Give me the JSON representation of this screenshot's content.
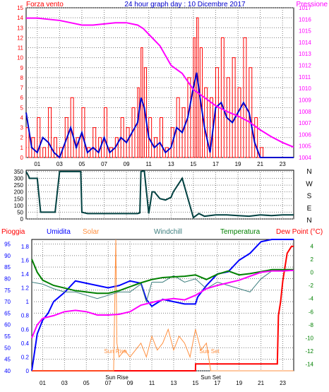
{
  "header": {
    "left_label": "Forza vento",
    "title": "24 hour graph day : 10 Dicembre 2017",
    "right_label": "Pressione"
  },
  "colors": {
    "background": "#ffffff",
    "plot_bg": "#ffffff",
    "grid": "#7f7f7f",
    "wind": "#ff0000",
    "gust_avg": "#0000cc",
    "pressure": "#ff00ff",
    "direction": "#004040",
    "rain": "#ff0000",
    "humidity": "#0000ff",
    "solar": "#ff9040",
    "windchill": "#408080",
    "temperature": "#008000",
    "dewpoint": "#ff00ff"
  },
  "hour_labels": [
    "01",
    "03",
    "05",
    "07",
    "09",
    "11",
    "13",
    "15",
    "17",
    "19",
    "21",
    "23"
  ],
  "chart_data": [
    {
      "type": "line",
      "title": "24 hour graph day : 10 Dicembre 2017",
      "ylabel_left": "Forza vento",
      "ylabel_right": "Pressione",
      "left_ticks": [
        "0",
        "1",
        "2",
        "3",
        "4",
        "5",
        "6",
        "7",
        "8",
        "9",
        "10",
        "11",
        "12",
        "13",
        "14",
        "15"
      ],
      "right_ticks": [
        "1004",
        "1005",
        "1006",
        "1007",
        "1008",
        "1009",
        "1010",
        "1011",
        "1012",
        "1013",
        "1014",
        "1015",
        "1016",
        "1017"
      ],
      "ylim_left": [
        0,
        15
      ],
      "ylim_right": [
        1004,
        1017
      ],
      "xlim": [
        0,
        24
      ],
      "series": [
        {
          "axis": "left",
          "color": "#ff0000",
          "x": [
            0,
            0.5,
            1,
            1.5,
            2,
            2.5,
            3,
            3.5,
            4,
            4.5,
            5,
            5.5,
            6,
            6.5,
            7,
            7.5,
            8,
            8.5,
            9,
            9.5,
            10,
            10.3,
            10.6,
            11,
            11.5,
            12,
            12.5,
            13,
            13.5,
            14,
            14.5,
            15,
            15.3,
            15.6,
            16,
            16.5,
            17,
            17.5,
            18,
            18.5,
            19,
            19.5,
            20,
            20.5,
            21,
            21.5,
            22,
            22.5,
            23,
            23.5,
            24
          ],
          "y": [
            3,
            2,
            4,
            1,
            5,
            2,
            1,
            4,
            6,
            2,
            5,
            1,
            3,
            2,
            5,
            1,
            2,
            4,
            3,
            5,
            7,
            11,
            9,
            4,
            2,
            4,
            1,
            3,
            6,
            5,
            8,
            12,
            14,
            11,
            7,
            6,
            9,
            12,
            8,
            10,
            7,
            12,
            9,
            4,
            1,
            0,
            0,
            0,
            0,
            0,
            0
          ]
        },
        {
          "axis": "left",
          "color": "#0000cc",
          "x": [
            0,
            0.5,
            1,
            1.5,
            2,
            2.5,
            3,
            3.5,
            4,
            4.5,
            5,
            5.5,
            6,
            6.5,
            7,
            7.5,
            8,
            8.5,
            9,
            9.5,
            10,
            10.3,
            10.6,
            11,
            11.5,
            12,
            12.5,
            13,
            13.5,
            14,
            14.5,
            15,
            15.3,
            15.6,
            16,
            16.5,
            17,
            17.5,
            18,
            18.5,
            19,
            19.5,
            20,
            20.5,
            21,
            21.5,
            22,
            22.5,
            23,
            23.5,
            24
          ],
          "y": [
            4.5,
            1,
            0.5,
            2,
            1.5,
            0.5,
            0,
            1.5,
            3,
            1,
            2.5,
            0.5,
            1,
            0.5,
            2,
            0.5,
            1,
            2,
            1.5,
            2.5,
            3.5,
            6,
            5,
            2,
            1,
            1.5,
            0.5,
            1,
            3,
            2.5,
            4,
            7,
            8.5,
            6,
            3,
            0.5,
            5,
            5.5,
            4,
            3.5,
            4.5,
            5.5,
            4.5,
            1.5,
            0,
            0,
            0,
            0,
            0,
            0,
            0
          ]
        },
        {
          "axis": "right",
          "color": "#ff00ff",
          "x": [
            0,
            1,
            2,
            3,
            4,
            5,
            6,
            7,
            8,
            9,
            10,
            10.5,
            11,
            12,
            13,
            14,
            15,
            16,
            17,
            18,
            19,
            20,
            21,
            22,
            23,
            24
          ],
          "y": [
            1016.1,
            1016.1,
            1016.0,
            1015.9,
            1015.7,
            1015.5,
            1015.5,
            1015.6,
            1015.7,
            1015.7,
            1015.5,
            1015.2,
            1014.7,
            1013.7,
            1012.0,
            1011.3,
            1009.9,
            1009.2,
            1008.5,
            1008.0,
            1007.6,
            1007.1,
            1006.4,
            1005.8,
            1005.3,
            1004.9
          ]
        }
      ]
    },
    {
      "type": "line",
      "title": "",
      "ylabel_right_letters": [
        "N",
        "W",
        "S",
        "E",
        "N"
      ],
      "left_ticks": [
        "0",
        "50",
        "100",
        "150",
        "200",
        "250",
        "300",
        "350"
      ],
      "ylim": [
        0,
        360
      ],
      "xlim": [
        0,
        24
      ],
      "series": [
        {
          "color": "#004040",
          "x": [
            0,
            0.2,
            0.3,
            1,
            1.3,
            1.5,
            2,
            2.6,
            3,
            4,
            4.9,
            5,
            5.5,
            6,
            7,
            8,
            9,
            10,
            10.2,
            10.3,
            10.6,
            11,
            11.3,
            11.5,
            12,
            12.5,
            13,
            13.2,
            14,
            15,
            15.5,
            16,
            17,
            18,
            19,
            20,
            21,
            22,
            23,
            24
          ],
          "y": [
            350,
            320,
            300,
            300,
            50,
            50,
            50,
            50,
            350,
            350,
            350,
            50,
            40,
            40,
            40,
            40,
            40,
            40,
            45,
            350,
            355,
            40,
            200,
            200,
            150,
            140,
            160,
            200,
            300,
            10,
            40,
            20,
            30,
            30,
            25,
            20,
            30,
            25,
            30,
            30
          ]
        }
      ]
    },
    {
      "type": "line",
      "title": "",
      "legend": [
        "Pioggia",
        "Umidita",
        "Solar",
        "Windchill",
        "Temperatura",
        "Dew Point (°C)"
      ],
      "humidity_ticks": [
        "40",
        "45",
        "50",
        "55",
        "60",
        "65",
        "70",
        "75",
        "80",
        "85",
        "90",
        "95"
      ],
      "rain_ticks": [
        "0",
        "0.2",
        "0.4",
        "0.6",
        "0.8",
        "1",
        "1.2",
        "1.4",
        "1.6",
        "1.8"
      ],
      "temp_ticks": [
        "-14",
        "-12",
        "-10",
        "-8",
        "-6",
        "-4",
        "-2",
        "0",
        "2",
        "4"
      ],
      "ylim_humidity": [
        40,
        97
      ],
      "ylim_temp": [
        -15,
        5
      ],
      "xlim": [
        0,
        24
      ],
      "annotations": [
        {
          "text": "Sun Rise",
          "x": 7.8
        },
        {
          "text": "Sun Set",
          "x": 16.4
        }
      ],
      "axis_labels": [
        "Sun Rise",
        "Sun Set"
      ],
      "series": [
        {
          "name": "Pioggia",
          "color": "#ff0000",
          "x": [
            0,
            15,
            15.01,
            22.5,
            22.6,
            22.8,
            23,
            23.2,
            23.4,
            23.8,
            24
          ],
          "y": [
            0,
            0,
            0.1,
            0.1,
            0.8,
            1.0,
            1.3,
            1.5,
            1.7,
            1.8,
            1.8
          ]
        },
        {
          "name": "Umidita",
          "color": "#0000ff",
          "x": [
            0,
            0.5,
            1,
            1.5,
            2,
            3,
            4,
            5,
            6,
            7,
            8,
            9,
            10,
            10.5,
            11,
            12,
            13,
            14,
            15,
            15.2,
            16,
            17,
            18,
            19,
            20,
            21,
            22,
            23,
            24
          ],
          "y": [
            40,
            56,
            62,
            65,
            70,
            74,
            79,
            78,
            77,
            76,
            77,
            79,
            78,
            71,
            68,
            71,
            70,
            69,
            69,
            72,
            77,
            82,
            83,
            88,
            91,
            96,
            97,
            97,
            97
          ]
        },
        {
          "name": "Solar",
          "color": "#ff9040",
          "x": [
            0,
            7,
            7.5,
            7.7,
            7.8,
            8.0,
            8.5,
            9,
            9.5,
            10,
            10.5,
            11,
            11.5,
            12,
            12.5,
            13,
            13.5,
            14,
            14.5,
            15,
            15.5,
            16,
            16.2,
            16.4,
            17,
            24
          ],
          "y": [
            0,
            0,
            0,
            1.9,
            0.4,
            0.2,
            0.3,
            0.2,
            0.3,
            0.4,
            0.2,
            0.5,
            0.3,
            0.4,
            0.6,
            0.3,
            0.5,
            0.4,
            0.2,
            0.6,
            0.3,
            0.4,
            0.2,
            0,
            0,
            0
          ]
        },
        {
          "name": "Windchill",
          "color": "#408080",
          "x": [
            0,
            1,
            2,
            3,
            4,
            5,
            6,
            7,
            8,
            9,
            10,
            10.5,
            11,
            12,
            13,
            14,
            15,
            16,
            17,
            18,
            19,
            20,
            21,
            22,
            23,
            24
          ],
          "y": [
            -1.5,
            -1.8,
            -2.5,
            -3,
            -3,
            -3.5,
            -4,
            -3.5,
            -3,
            -3,
            -1.8,
            -4.5,
            -1.5,
            -1.5,
            -0.5,
            -1.5,
            -1,
            -2.5,
            -1.5,
            -2,
            -2.5,
            -3,
            -1,
            0.2,
            0.3,
            0.3
          ]
        },
        {
          "name": "Temperatura",
          "color": "#008000",
          "x": [
            0,
            0.5,
            1,
            2,
            3,
            4,
            5,
            6,
            7,
            8,
            9,
            10,
            11,
            12,
            13,
            14,
            15,
            16,
            17,
            18,
            19,
            20,
            21,
            22,
            23,
            24
          ],
          "y": [
            2.0,
            0,
            -1.2,
            -2,
            -2.4,
            -2.8,
            -3,
            -3.2,
            -3.2,
            -2.8,
            -2.2,
            -1.6,
            -1.1,
            -0.8,
            -0.7,
            -0.6,
            -0.4,
            -1.1,
            -0.3,
            0.2,
            -0.4,
            -0.2,
            0.1,
            0.4,
            0.4,
            0.4
          ]
        },
        {
          "name": "Dew Point (°C)",
          "color": "#ff00ff",
          "x": [
            0,
            0.5,
            1,
            2,
            3,
            4,
            5,
            6,
            7,
            8,
            9,
            10,
            11,
            12,
            13,
            14,
            15,
            16,
            17,
            18,
            19,
            20,
            21,
            22,
            23,
            24
          ],
          "y": [
            -10,
            -8,
            -7,
            -6.6,
            -6,
            -5.8,
            -6,
            -6.5,
            -6.5,
            -6.4,
            -6,
            -5,
            -4.6,
            -4.2,
            -4,
            -4.2,
            -3.5,
            -2.5,
            -2,
            -1.6,
            -1.2,
            -0.6,
            0,
            0.2,
            0.2,
            0.3
          ]
        }
      ]
    }
  ]
}
